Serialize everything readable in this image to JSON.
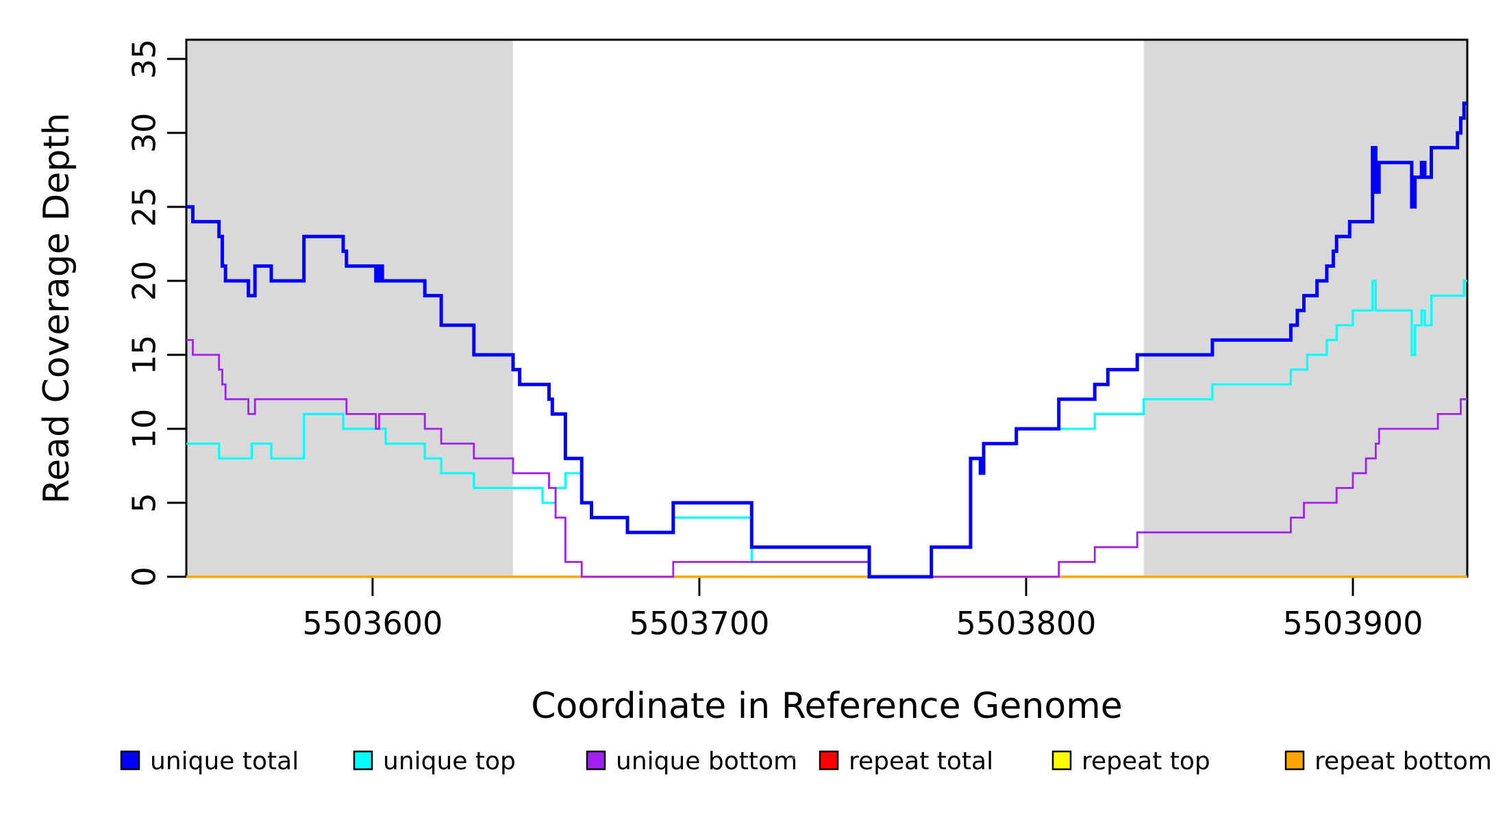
{
  "chart_data": {
    "type": "line",
    "subtype": "step",
    "title": "",
    "xlabel": "Coordinate in Reference Genome",
    "ylabel": "Read Coverage Depth",
    "xlim": [
      5503543,
      5503935
    ],
    "ylim": [
      0,
      35
    ],
    "x_ticks": [
      5503600,
      5503700,
      5503800,
      5503900
    ],
    "x_tick_labels": [
      "5503600",
      "5503700",
      "5503800",
      "5503900"
    ],
    "y_ticks": [
      0,
      5,
      10,
      15,
      20,
      25,
      30,
      35
    ],
    "y_tick_labels": [
      "0",
      "5",
      "10",
      "15",
      "20",
      "25",
      "30",
      "35"
    ],
    "grid": false,
    "legend_position": "bottom",
    "background_color": "#ffffff",
    "shaded_regions": [
      {
        "x0": 5503543,
        "x1": 5503643,
        "color": "#D9D9D9"
      },
      {
        "x0": 5503836,
        "x1": 5503935,
        "color": "#D9D9D9"
      }
    ],
    "draw_order": [
      "repeat total",
      "repeat top",
      "repeat bottom",
      "unique top",
      "unique bottom",
      "unique total"
    ],
    "series": [
      {
        "name": "unique total",
        "color": "#0000FF",
        "width": 5,
        "points": [
          [
            5503543,
            25
          ],
          [
            5503545,
            24
          ],
          [
            5503553,
            23
          ],
          [
            5503554,
            21
          ],
          [
            5503555,
            20
          ],
          [
            5503562,
            19
          ],
          [
            5503564,
            21
          ],
          [
            5503569,
            20
          ],
          [
            5503579,
            23
          ],
          [
            5503591,
            22
          ],
          [
            5503592,
            21
          ],
          [
            5503601,
            20
          ],
          [
            5503602,
            21
          ],
          [
            5503603,
            20
          ],
          [
            5503616,
            19
          ],
          [
            5503621,
            17
          ],
          [
            5503631,
            15
          ],
          [
            5503643,
            14
          ],
          [
            5503645,
            13
          ],
          [
            5503654,
            12
          ],
          [
            5503655,
            11
          ],
          [
            5503659,
            8
          ],
          [
            5503664,
            5
          ],
          [
            5503667,
            4
          ],
          [
            5503678,
            3
          ],
          [
            5503692,
            5
          ],
          [
            5503716,
            2
          ],
          [
            5503752,
            0
          ],
          [
            5503771,
            2
          ],
          [
            5503783,
            8
          ],
          [
            5503786,
            7
          ],
          [
            5503787,
            9
          ],
          [
            5503797,
            10
          ],
          [
            5503810,
            12
          ],
          [
            5503821,
            13
          ],
          [
            5503825,
            14
          ],
          [
            5503834,
            15
          ],
          [
            5503857,
            16
          ],
          [
            5503881,
            17
          ],
          [
            5503883,
            18
          ],
          [
            5503885,
            19
          ],
          [
            5503889,
            20
          ],
          [
            5503892,
            21
          ],
          [
            5503894,
            22
          ],
          [
            5503895,
            23
          ],
          [
            5503899,
            24
          ],
          [
            5503906,
            29
          ],
          [
            5503907,
            26
          ],
          [
            5503908,
            28
          ],
          [
            5503918,
            25
          ],
          [
            5503919,
            27
          ],
          [
            5503921,
            28
          ],
          [
            5503922,
            27
          ],
          [
            5503924,
            29
          ],
          [
            5503932,
            30
          ],
          [
            5503933,
            31
          ],
          [
            5503934,
            32
          ]
        ]
      },
      {
        "name": "unique top",
        "color": "#00FFFF",
        "width": 3.2,
        "points": [
          [
            5503543,
            9
          ],
          [
            5503553,
            8
          ],
          [
            5503563,
            9
          ],
          [
            5503569,
            8
          ],
          [
            5503579,
            11
          ],
          [
            5503591,
            10
          ],
          [
            5503604,
            9
          ],
          [
            5503616,
            8
          ],
          [
            5503621,
            7
          ],
          [
            5503631,
            6
          ],
          [
            5503652,
            5
          ],
          [
            5503656,
            6
          ],
          [
            5503659,
            7
          ],
          [
            5503664,
            5
          ],
          [
            5503667,
            4
          ],
          [
            5503678,
            3
          ],
          [
            5503692,
            4
          ],
          [
            5503716,
            1
          ],
          [
            5503752,
            0
          ],
          [
            5503771,
            2
          ],
          [
            5503783,
            8
          ],
          [
            5503786,
            7
          ],
          [
            5503787,
            9
          ],
          [
            5503797,
            10
          ],
          [
            5503821,
            11
          ],
          [
            5503836,
            12
          ],
          [
            5503857,
            13
          ],
          [
            5503881,
            14
          ],
          [
            5503886,
            15
          ],
          [
            5503892,
            16
          ],
          [
            5503895,
            17
          ],
          [
            5503900,
            18
          ],
          [
            5503906,
            20
          ],
          [
            5503907,
            18
          ],
          [
            5503918,
            15
          ],
          [
            5503919,
            17
          ],
          [
            5503921,
            18
          ],
          [
            5503922,
            17
          ],
          [
            5503924,
            19
          ],
          [
            5503934,
            20
          ]
        ]
      },
      {
        "name": "unique bottom",
        "color": "#A020F0",
        "width": 2.8,
        "points": [
          [
            5503543,
            16
          ],
          [
            5503545,
            15
          ],
          [
            5503553,
            14
          ],
          [
            5503554,
            13
          ],
          [
            5503555,
            12
          ],
          [
            5503562,
            11
          ],
          [
            5503564,
            12
          ],
          [
            5503592,
            11
          ],
          [
            5503601,
            10
          ],
          [
            5503602,
            11
          ],
          [
            5503616,
            10
          ],
          [
            5503621,
            9
          ],
          [
            5503631,
            8
          ],
          [
            5503643,
            7
          ],
          [
            5503654,
            6
          ],
          [
            5503656,
            4
          ],
          [
            5503659,
            1
          ],
          [
            5503664,
            0
          ],
          [
            5503692,
            1
          ],
          [
            5503752,
            0
          ],
          [
            5503810,
            1
          ],
          [
            5503821,
            2
          ],
          [
            5503834,
            3
          ],
          [
            5503881,
            4
          ],
          [
            5503885,
            5
          ],
          [
            5503895,
            6
          ],
          [
            5503900,
            7
          ],
          [
            5503904,
            8
          ],
          [
            5503907,
            9
          ],
          [
            5503908,
            10
          ],
          [
            5503926,
            11
          ],
          [
            5503933,
            12
          ]
        ]
      },
      {
        "name": "repeat total",
        "color": "#FF0000",
        "width": 3,
        "points": [
          [
            5503543,
            0
          ]
        ]
      },
      {
        "name": "repeat top",
        "color": "#FFFF00",
        "width": 3,
        "points": [
          [
            5503543,
            0
          ]
        ]
      },
      {
        "name": "repeat bottom",
        "color": "#FFA500",
        "width": 3.5,
        "points": [
          [
            5503543,
            0
          ]
        ]
      }
    ]
  },
  "legend": {
    "items": [
      {
        "label": "unique total",
        "color": "#0000FF"
      },
      {
        "label": "unique top",
        "color": "#00FFFF"
      },
      {
        "label": "unique bottom",
        "color": "#A020F0"
      },
      {
        "label": "repeat total",
        "color": "#FF0000"
      },
      {
        "label": "repeat top",
        "color": "#FFFF00"
      },
      {
        "label": "repeat bottom",
        "color": "#FFA500"
      }
    ]
  }
}
